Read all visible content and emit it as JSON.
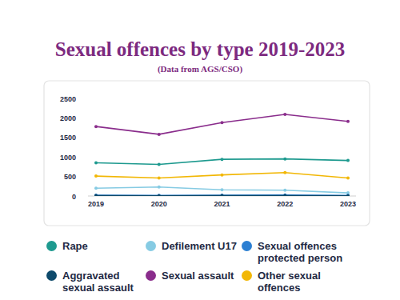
{
  "chart_data": {
    "type": "line",
    "title": "Sexual offences by type 2019-2023",
    "subtitle": "(Data from AGS/CSO)",
    "categories": [
      "2019",
      "2020",
      "2021",
      "2022",
      "2023"
    ],
    "series": [
      {
        "name": "Rape",
        "color": "#1e9a8f",
        "values": [
          850,
          810,
          940,
          950,
          910
        ]
      },
      {
        "name": "Defilement U17",
        "color": "#86cbe3",
        "values": [
          200,
          230,
          160,
          150,
          80
        ]
      },
      {
        "name": "Sexual offences protected person",
        "color": "#2b7fd2",
        "values": [
          20,
          15,
          20,
          25,
          15
        ]
      },
      {
        "name": "Aggravated sexual assault",
        "color": "#0e4a6b",
        "values": [
          10,
          5,
          10,
          10,
          5
        ]
      },
      {
        "name": "Sexual assault",
        "color": "#8a2d8c",
        "values": [
          1780,
          1580,
          1880,
          2090,
          1910
        ]
      },
      {
        "name": "Other sexual offences",
        "color": "#f2b705",
        "values": [
          510,
          460,
          540,
          600,
          460
        ]
      }
    ],
    "ylim": [
      0,
      2500
    ],
    "yticks": [
      0,
      500,
      1000,
      1500,
      2000,
      2500
    ],
    "grid": false,
    "legend": "bottom",
    "marker": "circle",
    "line_style": "solid"
  }
}
